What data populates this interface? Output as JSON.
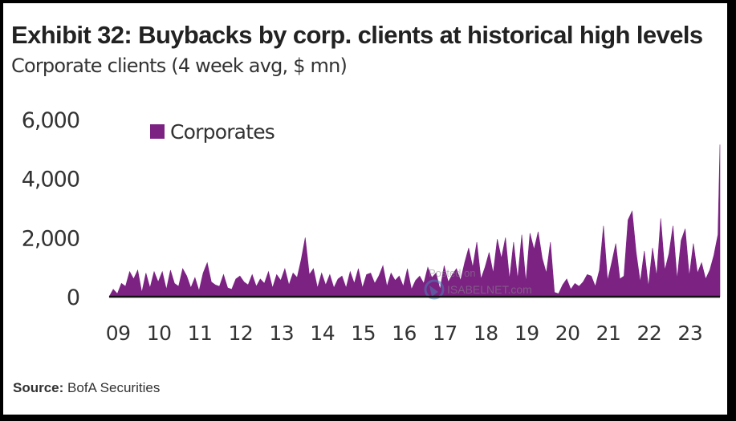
{
  "title": "Exhibit 32: Buybacks by corp. clients at historical high levels",
  "subtitle": "Corporate clients (4 week avg, $ mn)",
  "source_label": "Source:",
  "source_text": "BofA Securities",
  "watermark": {
    "line1": "Posted on",
    "line2": "ISABELNET.com"
  },
  "colors": {
    "series": "#7b2283",
    "axis": "#111111",
    "text": "#333333"
  },
  "chart_data": {
    "type": "area",
    "title": "Exhibit 32: Buybacks by corp. clients at historical high levels",
    "subtitle": "Corporate clients (4 week avg, $ mn)",
    "ylim": [
      0,
      6000
    ],
    "xlim": [
      2009.0,
      2023.95
    ],
    "y_ticks": [
      0,
      2000,
      4000,
      6000
    ],
    "y_tick_labels": [
      "0",
      "2,000",
      "4,000",
      "6,000"
    ],
    "x_ticks": [
      2009,
      2010,
      2011,
      2012,
      2013,
      2014,
      2015,
      2016,
      2017,
      2018,
      2019,
      2020,
      2021,
      2022,
      2023
    ],
    "x_tick_labels": [
      "09",
      "10",
      "11",
      "12",
      "13",
      "14",
      "15",
      "16",
      "17",
      "18",
      "19",
      "20",
      "21",
      "22",
      "23"
    ],
    "legend": {
      "position": "top-left",
      "entries": [
        "Corporates"
      ]
    },
    "grid": false,
    "series": [
      {
        "name": "Corporates",
        "color": "#7b2283",
        "x": [
          2009.0,
          2009.1,
          2009.2,
          2009.3,
          2009.4,
          2009.5,
          2009.6,
          2009.7,
          2009.8,
          2009.9,
          2010.0,
          2010.1,
          2010.2,
          2010.3,
          2010.4,
          2010.5,
          2010.6,
          2010.7,
          2010.8,
          2010.9,
          2011.0,
          2011.1,
          2011.2,
          2011.3,
          2011.4,
          2011.5,
          2011.6,
          2011.7,
          2011.8,
          2011.9,
          2012.0,
          2012.1,
          2012.2,
          2012.3,
          2012.4,
          2012.5,
          2012.6,
          2012.7,
          2012.8,
          2012.9,
          2013.0,
          2013.1,
          2013.2,
          2013.3,
          2013.4,
          2013.5,
          2013.6,
          2013.7,
          2013.8,
          2013.9,
          2014.0,
          2014.1,
          2014.2,
          2014.3,
          2014.4,
          2014.5,
          2014.6,
          2014.7,
          2014.8,
          2014.9,
          2015.0,
          2015.1,
          2015.2,
          2015.3,
          2015.4,
          2015.5,
          2015.6,
          2015.7,
          2015.8,
          2015.9,
          2016.0,
          2016.1,
          2016.2,
          2016.3,
          2016.4,
          2016.5,
          2016.6,
          2016.7,
          2016.8,
          2016.9,
          2017.0,
          2017.1,
          2017.2,
          2017.3,
          2017.4,
          2017.5,
          2017.6,
          2017.7,
          2017.8,
          2017.9,
          2018.0,
          2018.1,
          2018.2,
          2018.3,
          2018.4,
          2018.5,
          2018.6,
          2018.7,
          2018.8,
          2018.9,
          2019.0,
          2019.1,
          2019.2,
          2019.3,
          2019.4,
          2019.5,
          2019.6,
          2019.7,
          2019.8,
          2019.9,
          2020.0,
          2020.1,
          2020.2,
          2020.3,
          2020.4,
          2020.5,
          2020.6,
          2020.7,
          2020.8,
          2020.9,
          2021.0,
          2021.1,
          2021.2,
          2021.3,
          2021.4,
          2021.5,
          2021.6,
          2021.7,
          2021.8,
          2021.9,
          2022.0,
          2022.1,
          2022.2,
          2022.3,
          2022.4,
          2022.5,
          2022.6,
          2022.7,
          2022.8,
          2022.9,
          2023.0,
          2023.1,
          2023.2,
          2023.3,
          2023.4,
          2023.5,
          2023.6,
          2023.7,
          2023.8,
          2023.9,
          2023.95
        ],
        "values": [
          0,
          250,
          100,
          450,
          350,
          850,
          600,
          900,
          150,
          800,
          300,
          850,
          500,
          850,
          250,
          900,
          450,
          350,
          950,
          700,
          300,
          650,
          200,
          800,
          1150,
          500,
          400,
          350,
          750,
          300,
          250,
          600,
          700,
          500,
          400,
          750,
          350,
          600,
          450,
          850,
          300,
          750,
          550,
          950,
          400,
          800,
          650,
          1250,
          2000,
          750,
          950,
          300,
          800,
          400,
          750,
          300,
          600,
          700,
          300,
          850,
          450,
          950,
          300,
          750,
          800,
          450,
          700,
          1050,
          350,
          800,
          550,
          700,
          350,
          950,
          250,
          550,
          700,
          450,
          1000,
          650,
          800,
          250,
          1050,
          500,
          750,
          950,
          550,
          1150,
          1650,
          1000,
          1850,
          600,
          1000,
          1500,
          800,
          1950,
          1300,
          2000,
          600,
          1850,
          600,
          2100,
          500,
          2150,
          1600,
          2200,
          1300,
          800,
          1850,
          150,
          100,
          400,
          600,
          250,
          450,
          350,
          500,
          750,
          700,
          350,
          900,
          2400,
          550,
          1150,
          1800,
          600,
          700,
          2600,
          2900,
          1500,
          500,
          1550,
          350,
          1650,
          700,
          2650,
          900,
          1450,
          2400,
          600,
          1900,
          2300,
          700,
          1800,
          800,
          1150,
          600,
          900,
          1400,
          2100,
          5150
        ]
      }
    ]
  }
}
